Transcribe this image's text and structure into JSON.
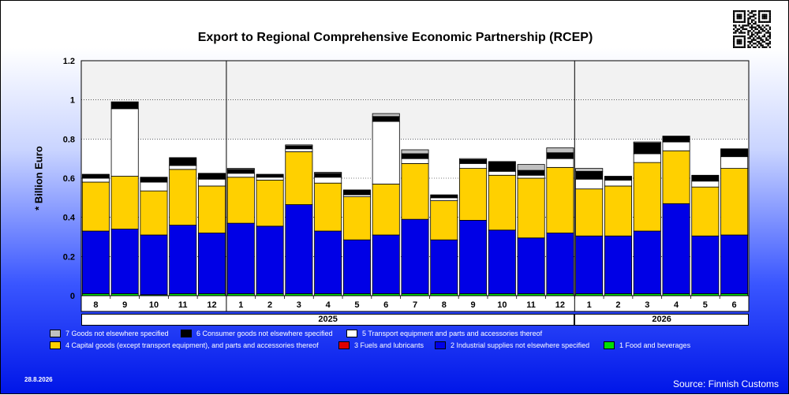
{
  "chart_data": {
    "type": "bar",
    "stacked": true,
    "title": "Export to Regional Comprehensive Economic Partnership (RCEP)",
    "ylabel": "* Billion Euro",
    "ylim": [
      0,
      1.2
    ],
    "yticks": [
      "0",
      "0.2",
      "0.4",
      "0.6",
      "0.8",
      "1",
      "1.2"
    ],
    "grid": true,
    "legend_position": "bottom",
    "categories": [
      "8",
      "9",
      "10",
      "11",
      "12",
      "1",
      "2",
      "3",
      "4",
      "5",
      "6",
      "7",
      "8",
      "9",
      "10",
      "11",
      "12",
      "1",
      "2",
      "3",
      "4",
      "5",
      "6"
    ],
    "years": [
      {
        "label": "2025",
        "start_index": 5,
        "end_index": 16
      },
      {
        "label": "2026",
        "start_index": 17,
        "end_index": 22
      }
    ],
    "series": [
      {
        "name": "1 Food and beverages",
        "color": "#00e000",
        "values": [
          0.01,
          0.01,
          0.005,
          0.01,
          0.01,
          0.01,
          0.01,
          0.01,
          0.01,
          0.01,
          0.01,
          0.01,
          0.01,
          0.01,
          0.01,
          0.01,
          0.01,
          0.01,
          0.01,
          0.01,
          0.01,
          0.01,
          0.01
        ]
      },
      {
        "name": "2 Industrial supplies not elsewhere specified",
        "color": "#0000e6",
        "values": [
          0.32,
          0.33,
          0.305,
          0.35,
          0.31,
          0.36,
          0.345,
          0.455,
          0.32,
          0.275,
          0.3,
          0.38,
          0.275,
          0.375,
          0.325,
          0.285,
          0.31,
          0.295,
          0.295,
          0.32,
          0.46,
          0.295,
          0.3
        ]
      },
      {
        "name": "3 Fuels and lubricants",
        "color": "#e00000",
        "values": [
          0,
          0,
          0,
          0,
          0,
          0,
          0,
          0,
          0,
          0,
          0,
          0,
          0,
          0,
          0,
          0,
          0,
          0,
          0,
          0,
          0,
          0,
          0
        ]
      },
      {
        "name": "4 Capital goods (except transport equipment), and parts and accessories thereof",
        "color": "#ffd000",
        "values": [
          0.25,
          0.27,
          0.225,
          0.285,
          0.24,
          0.235,
          0.235,
          0.27,
          0.245,
          0.22,
          0.26,
          0.285,
          0.2,
          0.265,
          0.28,
          0.305,
          0.335,
          0.24,
          0.255,
          0.35,
          0.27,
          0.25,
          0.34
        ]
      },
      {
        "name": "5  Transport equipment and parts and accessories thereof",
        "color": "#ffffff",
        "values": [
          0.02,
          0.345,
          0.045,
          0.02,
          0.035,
          0.02,
          0.015,
          0.015,
          0.03,
          0.01,
          0.32,
          0.025,
          0.015,
          0.025,
          0.02,
          0.015,
          0.045,
          0.05,
          0.03,
          0.045,
          0.045,
          0.03,
          0.06
        ]
      },
      {
        "name": "6 Consumer goods not elsewhere specified",
        "color": "#000000",
        "values": [
          0.02,
          0.035,
          0.025,
          0.04,
          0.03,
          0.02,
          0.015,
          0.015,
          0.02,
          0.025,
          0.025,
          0.025,
          0.015,
          0.02,
          0.05,
          0.025,
          0.03,
          0.04,
          0.02,
          0.055,
          0.03,
          0.03,
          0.04
        ]
      },
      {
        "name": "7 Goods not elsewhere specified",
        "color": "#c0c0c0",
        "values": [
          0,
          0,
          0,
          0,
          0,
          0.005,
          0,
          0.005,
          0.005,
          0,
          0.015,
          0.02,
          0,
          0.005,
          0,
          0.03,
          0.025,
          0.015,
          0,
          0.005,
          0,
          0,
          0
        ]
      }
    ]
  },
  "legend": {
    "row1": [
      {
        "label": "7 Goods not elsewhere specified",
        "color": "#c0c0c0"
      },
      {
        "label": "6 Consumer goods not elsewhere specified",
        "color": "#000000"
      },
      {
        "label": "5  Transport equipment and parts and accessories thereof",
        "color": "#ffffff"
      }
    ],
    "row2": [
      {
        "label": "4 Capital goods (except transport equipment), and parts and accessories thereof",
        "color": "#ffd000"
      },
      {
        "label": "3 Fuels and lubricants",
        "color": "#e00000"
      },
      {
        "label": "2 Industrial supplies not elsewhere specified",
        "color": "#0000e6"
      },
      {
        "label": "1 Food and beverages",
        "color": "#00e000"
      }
    ]
  },
  "footer": {
    "date": "28.8.2026",
    "source": "Source: Finnish Customs"
  },
  "qr_icon": "qr-code-icon"
}
